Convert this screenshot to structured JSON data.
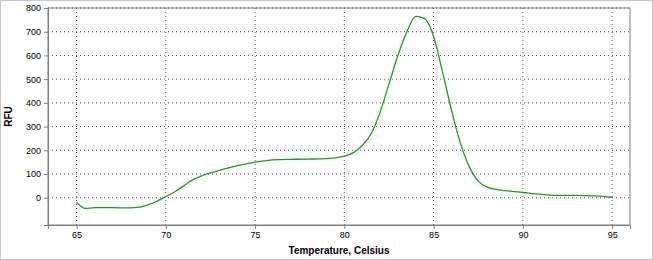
{
  "chart_data": {
    "type": "line",
    "x_label": "Temperature, Celsius",
    "y_label": "RFU",
    "x": [
      65,
      65.5,
      66,
      67,
      68,
      68.5,
      69,
      69.5,
      70,
      70.5,
      71,
      71.5,
      72,
      73,
      74,
      75,
      76,
      77,
      78,
      79,
      80,
      80.5,
      81,
      81.5,
      82,
      82.5,
      83,
      83.5,
      84,
      84.5,
      85,
      85.5,
      86,
      86.5,
      87,
      87.5,
      88,
      88.5,
      89,
      90,
      91,
      92,
      93,
      94,
      95
    ],
    "values": [
      -20,
      -45,
      -42,
      -42,
      -43,
      -40,
      -30,
      -15,
      5,
      25,
      50,
      75,
      92,
      115,
      135,
      150,
      160,
      162,
      163,
      165,
      175,
      190,
      220,
      270,
      360,
      480,
      600,
      700,
      765,
      755,
      680,
      530,
      370,
      230,
      130,
      70,
      45,
      35,
      30,
      22,
      14,
      10,
      10,
      8,
      2
    ],
    "color": "#1f9a1f",
    "xlim": [
      63.4,
      96
    ],
    "ylim": [
      -115,
      800
    ],
    "xticks": [
      65,
      70,
      75,
      80,
      85,
      90,
      95
    ],
    "yticks": [
      0,
      100,
      200,
      300,
      400,
      500,
      600,
      700,
      800
    ],
    "grid": true
  }
}
